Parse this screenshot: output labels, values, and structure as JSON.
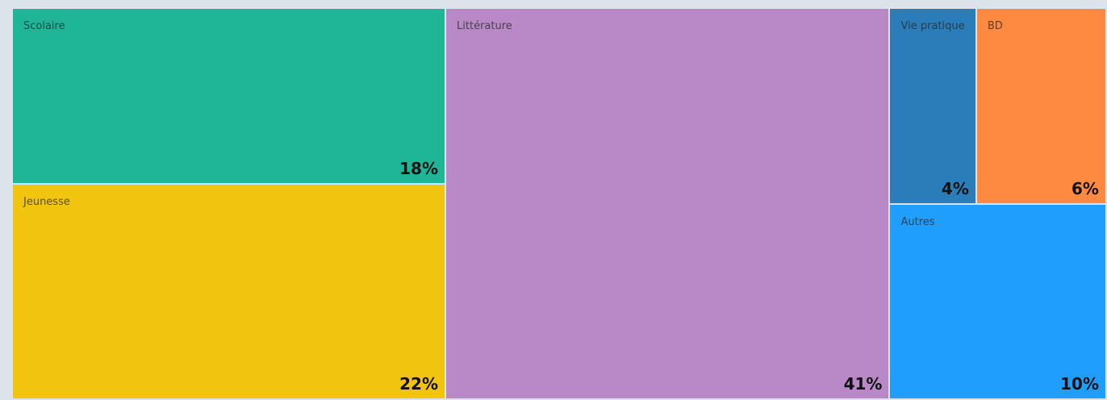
{
  "chart_data": {
    "type": "treemap",
    "categories": [
      "Scolaire",
      "Jeunesse",
      "Littérature",
      "Vie pratique",
      "BD",
      "Autres"
    ],
    "values": [
      18,
      22,
      41,
      4,
      6,
      10
    ],
    "value_labels": [
      "18%",
      "22%",
      "41%",
      "4%",
      "6%",
      "10%"
    ],
    "colors": [
      "#1fb597",
      "#f1c40f",
      "#b988c6",
      "#2a7db8",
      "#fe8a41",
      "#1f9efd"
    ]
  }
}
